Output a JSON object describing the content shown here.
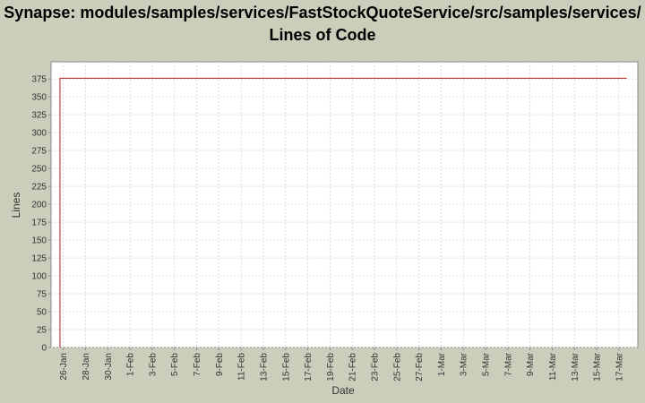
{
  "chart_data": {
    "type": "line",
    "title": "Synapse: modules/samples/services/FastStockQuoteService/src/samples/services/ Lines of Code",
    "xlabel": "Date",
    "ylabel": "Lines",
    "x": [
      25.7,
      25.7,
      76.7
    ],
    "series": [
      {
        "name": "Lines",
        "color": "#b22222",
        "values": [
          0,
          376,
          376
        ]
      }
    ],
    "xlim": [
      24.9,
      77.7
    ],
    "xticks": [
      {
        "value": 26,
        "label": "26-Jan"
      },
      {
        "value": 28,
        "label": "28-Jan"
      },
      {
        "value": 30,
        "label": "30-Jan"
      },
      {
        "value": 32,
        "label": "1-Feb"
      },
      {
        "value": 34,
        "label": "3-Feb"
      },
      {
        "value": 36,
        "label": "5-Feb"
      },
      {
        "value": 38,
        "label": "7-Feb"
      },
      {
        "value": 40,
        "label": "9-Feb"
      },
      {
        "value": 42,
        "label": "11-Feb"
      },
      {
        "value": 44,
        "label": "13-Feb"
      },
      {
        "value": 46,
        "label": "15-Feb"
      },
      {
        "value": 48,
        "label": "17-Feb"
      },
      {
        "value": 50,
        "label": "19-Feb"
      },
      {
        "value": 52,
        "label": "21-Feb"
      },
      {
        "value": 54,
        "label": "23-Feb"
      },
      {
        "value": 56,
        "label": "25-Feb"
      },
      {
        "value": 58,
        "label": "27-Feb"
      },
      {
        "value": 60,
        "label": "1-Mar"
      },
      {
        "value": 62,
        "label": "3-Mar"
      },
      {
        "value": 64,
        "label": "5-Mar"
      },
      {
        "value": 66,
        "label": "7-Mar"
      },
      {
        "value": 68,
        "label": "9-Mar"
      },
      {
        "value": 70,
        "label": "11-Mar"
      },
      {
        "value": 72,
        "label": "13-Mar"
      },
      {
        "value": 74,
        "label": "15-Mar"
      },
      {
        "value": 76,
        "label": "17-Mar"
      }
    ],
    "ylim": [
      0,
      399
    ],
    "yticks": [
      0,
      25,
      50,
      75,
      100,
      125,
      150,
      175,
      200,
      225,
      250,
      275,
      300,
      325,
      350,
      375
    ],
    "grid": true
  }
}
